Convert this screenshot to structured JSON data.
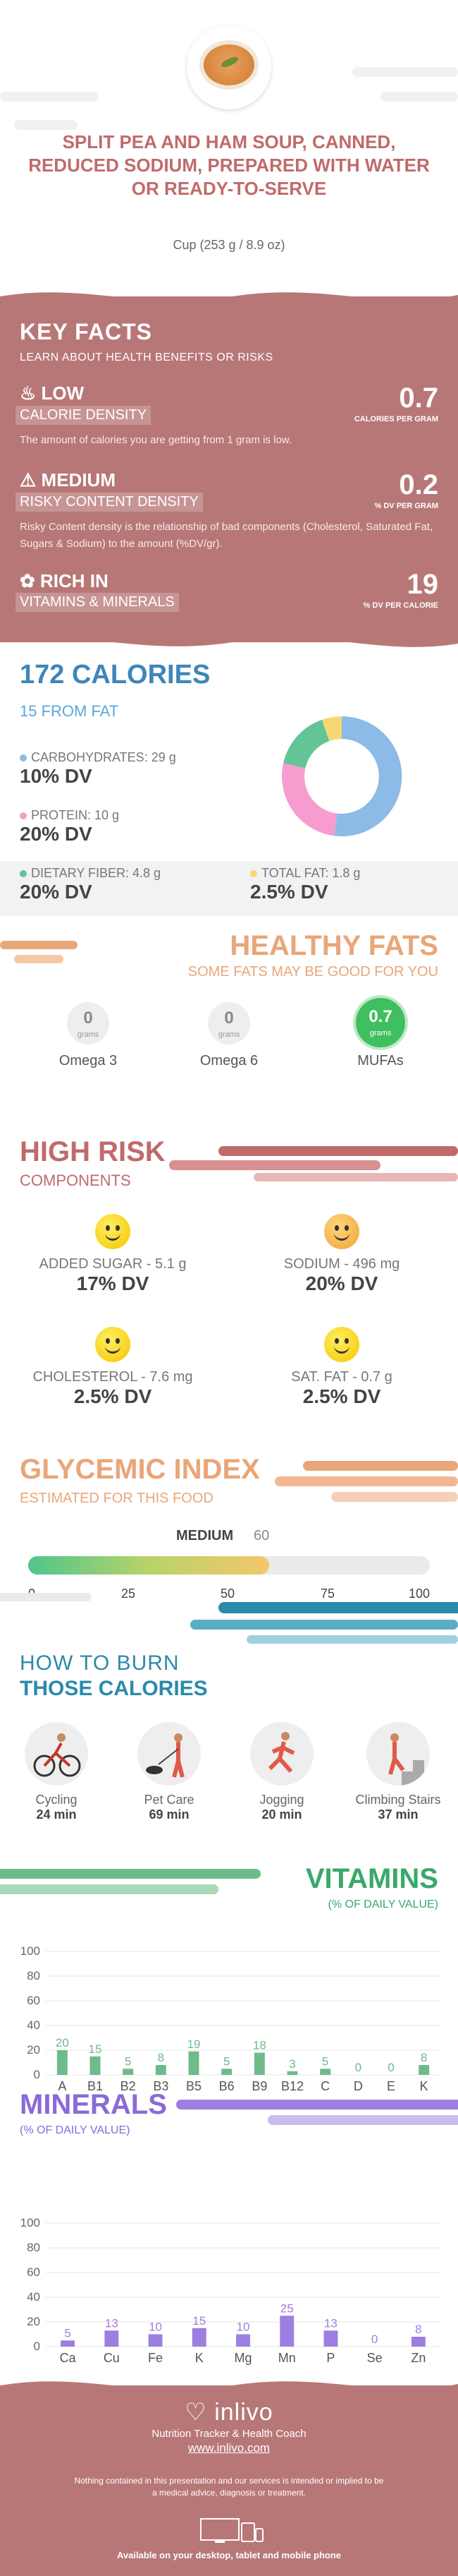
{
  "header": {
    "title": "SPLIT PEA AND HAM SOUP, CANNED, REDUCED SODIUM, PREPARED WITH WATER OR READY-TO-SERVE",
    "serving": "Cup (253 g / 8.9 oz)"
  },
  "key_facts": {
    "title": "KEY FACTS",
    "subtitle": "LEARN ABOUT HEALTH BENEFITS OR RISKS",
    "density": {
      "level": "LOW",
      "label": "CALORIE DENSITY",
      "value": "0.7",
      "unit": "CALORIES PER GRAM",
      "desc": "The amount of calories you are getting from 1 gram is low."
    },
    "risky": {
      "level": "MEDIUM",
      "label": "RISKY CONTENT DENSITY",
      "value": "0.2",
      "unit": "% DV PER GRAM",
      "desc": "Risky Content density is the relationship of bad components (Cholesterol, Saturated Fat, Sugars & Sodium) to the amount (%DV/gr)."
    },
    "rich": {
      "level": "RICH  IN",
      "label": "VITAMINS & MINERALS",
      "value": "19",
      "unit": "% DV PER CALORIE"
    }
  },
  "calories": {
    "title": "172 CALORIES",
    "from_fat": "15 FROM FAT",
    "carbs": {
      "name": "CARBOHYDRATES: 29 g",
      "dv": "10% DV",
      "color": "#8bbbe6"
    },
    "protein": {
      "name": "PROTEIN: 10 g",
      "dv": "20% DV",
      "color": "#f79ccf"
    },
    "fiber": {
      "name": "DIETARY FIBER: 4.8 g",
      "dv": "20% DV",
      "color": "#63c596"
    },
    "fat": {
      "name": "TOTAL FAT: 1.8 g",
      "dv": "2.5% DV",
      "color": "#f7d774"
    }
  },
  "healthy_fats": {
    "title": "HEALTHY FATS",
    "subtitle": "SOME FATS MAY BE GOOD FOR YOU",
    "items": [
      {
        "value": "0",
        "unit": "grams",
        "name": "Omega 3"
      },
      {
        "value": "0",
        "unit": "grams",
        "name": "Omega 6"
      },
      {
        "value": "0.7",
        "unit": "grams",
        "name": "MUFAs"
      }
    ]
  },
  "high_risk": {
    "title": "HIGH RISK",
    "subtitle": "COMPONENTS",
    "items": [
      {
        "name": "ADDED SUGAR - 5.1 g",
        "dv": "17% DV"
      },
      {
        "name": "SODIUM - 496 mg",
        "dv": "20% DV"
      },
      {
        "name": "CHOLESTEROL - 7.6 mg",
        "dv": "2.5% DV"
      },
      {
        "name": "SAT. FAT - 0.7 g",
        "dv": "2.5% DV"
      }
    ]
  },
  "glycemic": {
    "title": "GLYCEMIC INDEX",
    "subtitle": "ESTIMATED FOR THIS FOOD",
    "level": "MEDIUM",
    "value": "60",
    "ticks": [
      "0",
      "25",
      "50",
      "75",
      "100"
    ],
    "fraction": 0.6
  },
  "burn": {
    "title1": "HOW TO BURN",
    "title2": "THOSE CALORIES",
    "activities": [
      {
        "name": "Cycling",
        "min": "24 min",
        "icon": "cycling-icon"
      },
      {
        "name": "Pet Care",
        "min": "69 min",
        "icon": "pet-care-icon"
      },
      {
        "name": "Jogging",
        "min": "20 min",
        "icon": "jogging-icon"
      },
      {
        "name": "Climbing Stairs",
        "min": "37 min",
        "icon": "stairs-icon"
      }
    ]
  },
  "vitamins": {
    "title": "VITAMINS",
    "subtitle": "(% OF DAILY VALUE)",
    "color": "#6dbb8a"
  },
  "minerals": {
    "title": "MINERALS",
    "subtitle": "(% OF DAILY VALUE)",
    "color": "#9c7fe0"
  },
  "chart_data": [
    {
      "type": "bar",
      "categories": [
        "A",
        "B1",
        "B2",
        "B3",
        "B5",
        "B6",
        "B9",
        "B12",
        "C",
        "D",
        "E",
        "K"
      ],
      "values": [
        20,
        15,
        5,
        8,
        19,
        5,
        18,
        3,
        5,
        0,
        0,
        8
      ],
      "title": "VITAMINS",
      "ylim": [
        0,
        100
      ],
      "yticks": [
        "0",
        "20",
        "40",
        "60",
        "80",
        "100"
      ]
    },
    {
      "type": "bar",
      "categories": [
        "Ca",
        "Cu",
        "Fe",
        "K",
        "Mg",
        "Mn",
        "P",
        "Se",
        "Zn"
      ],
      "values": [
        5,
        13,
        10,
        15,
        10,
        25,
        13,
        0,
        8
      ],
      "title": "MINERALS",
      "ylim": [
        0,
        100
      ],
      "yticks": [
        "0",
        "20",
        "40",
        "60",
        "80",
        "100"
      ]
    }
  ],
  "footer": {
    "brand": "inlivo",
    "tagline": "Nutrition Tracker & Health Coach",
    "url": "www.inlivo.com",
    "disclaimer": "Nothing contained in this presentation and our services is intended or implied to be a medical advice, diagnosis or treatment.",
    "available": "Available on your desktop, tablet and mobile phone"
  }
}
